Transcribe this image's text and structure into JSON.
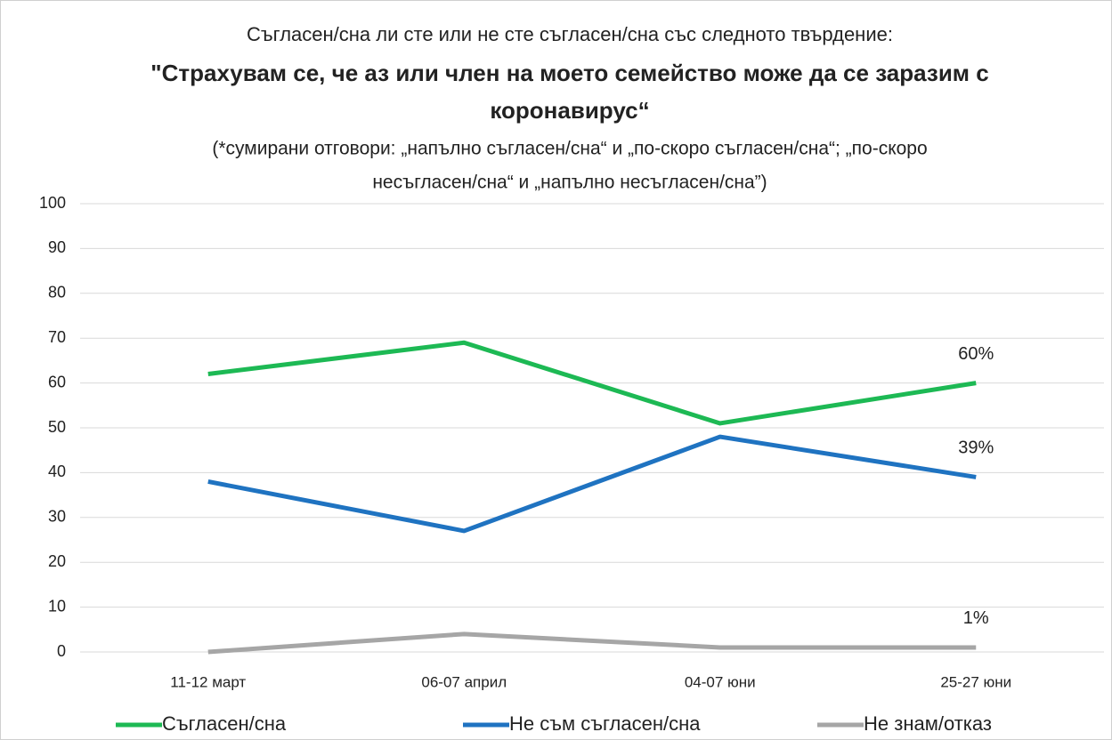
{
  "chart_data": {
    "type": "line",
    "subtitle": "Съгласен/сна ли сте или не сте съгласен/сна със следното твърдение:",
    "title": [
      "\"Страхувам се, че аз или член на моето семейство може да се заразим с",
      "коронавирус“"
    ],
    "note": [
      "(*сумирани отговори: „напълно съгласен/сна“ и „по-скоро съгласен/сна“; „по-скоро",
      "несъгласен/сна“ и „напълно несъгласен/сна”)"
    ],
    "categories": [
      "11-12 март",
      "06-07 април",
      "04-07 юни",
      "25-27 юни"
    ],
    "series": [
      {
        "name": "Съгласен/сна",
        "color": "#1db954",
        "values": [
          62,
          69,
          51,
          60
        ],
        "value_labels": [
          null,
          null,
          null,
          "60%"
        ]
      },
      {
        "name": "Не съм съгласен/сна",
        "color": "#1f73c1",
        "values": [
          38,
          27,
          48,
          39
        ],
        "value_labels": [
          null,
          null,
          null,
          "39%"
        ]
      },
      {
        "name": "Не знам/отказ",
        "color": "#a6a6a6",
        "values": [
          0,
          4,
          1,
          1
        ],
        "value_labels": [
          null,
          null,
          null,
          "1%"
        ]
      }
    ],
    "ylim": [
      0,
      100
    ],
    "yticks": [
      0,
      10,
      20,
      30,
      40,
      50,
      60,
      70,
      80,
      90,
      100
    ],
    "grid": true,
    "legend": "bottom"
  }
}
